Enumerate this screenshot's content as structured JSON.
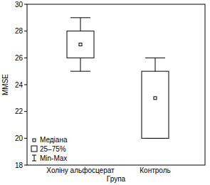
{
  "chart_data": {
    "type": "box",
    "x_label": "Група",
    "y_label": "MMSE",
    "categories": [
      "Холіну альфосцерат",
      "Контроль"
    ],
    "series": [
      {
        "name": "Медіана",
        "values": [
          27,
          23
        ],
        "marker": "square"
      },
      {
        "name": "25–75%",
        "low": [
          26,
          20
        ],
        "high": [
          28,
          25
        ]
      },
      {
        "name": "Min-Max",
        "low": [
          25,
          20
        ],
        "high": [
          29,
          26
        ]
      }
    ],
    "ylim": [
      18,
      30
    ],
    "yticks": [
      18,
      20,
      22,
      24,
      26,
      28,
      30
    ],
    "grid": false,
    "legend": "lower left",
    "color": "#000000"
  }
}
